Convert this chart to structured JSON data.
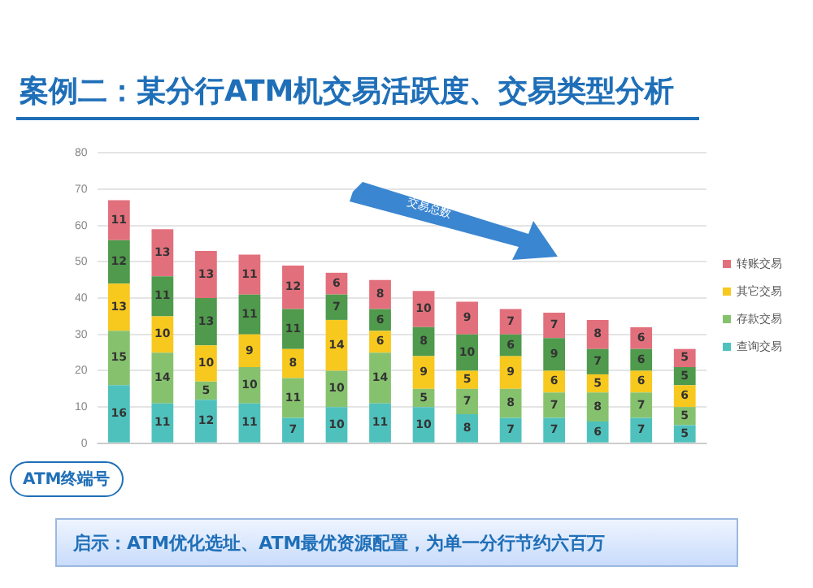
{
  "chart_data": {
    "type": "bar",
    "title": "案例二：某分行ATM机交易活跃度、交易类型分析",
    "xlabel": "ATM终端号",
    "categories": [
      null,
      null,
      null,
      null,
      null,
      null,
      null,
      null,
      null,
      null,
      null,
      null,
      null,
      null
    ],
    "stacked": true,
    "series": [
      {
        "name": "查询交易",
        "color": "#4fc1bd",
        "values": [
          16,
          11,
          12,
          11,
          7,
          10,
          11,
          10,
          8,
          7,
          7,
          6,
          7,
          5
        ]
      },
      {
        "name": "存款交易",
        "color": "#86c26e",
        "values": [
          15,
          14,
          5,
          10,
          11,
          10,
          14,
          5,
          7,
          8,
          7,
          8,
          7,
          5
        ]
      },
      {
        "name": "其它交易",
        "color": "#f7c81e",
        "values": [
          13,
          10,
          10,
          9,
          8,
          14,
          6,
          9,
          5,
          9,
          6,
          5,
          6,
          6
        ]
      },
      {
        "color": "#4f9a4c",
        "values": [
          12,
          11,
          13,
          11,
          11,
          7,
          6,
          8,
          10,
          6,
          9,
          7,
          6,
          5
        ]
      },
      {
        "name": "转账交易",
        "color": "#e2707c",
        "values": [
          11,
          13,
          13,
          11,
          12,
          6,
          8,
          10,
          9,
          7,
          7,
          8,
          6,
          5
        ]
      }
    ],
    "ylim": [
      0,
      80
    ],
    "yticks": [
      0,
      10,
      20,
      30,
      40,
      50,
      60,
      70,
      80
    ],
    "grid": "y",
    "legend": "right",
    "data_labels": true,
    "annotations": [
      "交易总数",
      "启示：ATM优化选址、ATM最优资源配置，为单一分行节约六百万"
    ]
  }
}
